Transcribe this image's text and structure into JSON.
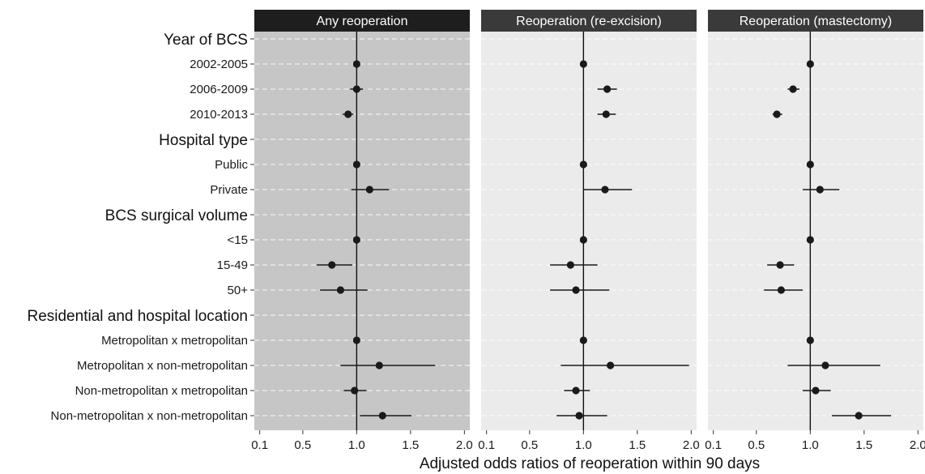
{
  "chart_data": {
    "type": "forest",
    "xlabel": "Adjusted odds ratios of reoperation within 90 days",
    "x_ticks": [
      0.1,
      0.5,
      1.0,
      1.5,
      2.0
    ],
    "x_tick_labels": [
      "0.1",
      "0.5",
      "1.0",
      "1.5",
      "2.0"
    ],
    "xlim": [
      0.05,
      2.05
    ],
    "reference_line": 1.0,
    "rows": [
      {
        "label": "Year of BCS",
        "header": true
      },
      {
        "label": "2002-2005"
      },
      {
        "label": "2006-2009"
      },
      {
        "label": "2010-2013"
      },
      {
        "label": "Hospital type",
        "header": true
      },
      {
        "label": "Public"
      },
      {
        "label": "Private"
      },
      {
        "label": "BCS surgical volume",
        "header": true
      },
      {
        "label": "<15"
      },
      {
        "label": "15-49"
      },
      {
        "label": "50+"
      },
      {
        "label": "Residential and hospital location",
        "header": true
      },
      {
        "label": "Metropolitan x metropolitan"
      },
      {
        "label": "Metropolitan x non-metropolitan"
      },
      {
        "label": "Non-metropolitan x metropolitan"
      },
      {
        "label": "Non-metropolitan x non-metropolitan"
      }
    ],
    "panels": [
      {
        "title": "Any reoperation",
        "background": "#c6c6c6",
        "strip_color": "#1e1e1e",
        "estimates": [
          null,
          {
            "or": 1.0,
            "lo": 1.0,
            "hi": 1.0
          },
          {
            "or": 1.0,
            "lo": 0.94,
            "hi": 1.06
          },
          {
            "or": 0.92,
            "lo": 0.87,
            "hi": 0.97
          },
          null,
          {
            "or": 1.0,
            "lo": 1.0,
            "hi": 1.0
          },
          {
            "or": 1.12,
            "lo": 0.95,
            "hi": 1.3
          },
          null,
          {
            "or": 1.0,
            "lo": 1.0,
            "hi": 1.0
          },
          {
            "or": 0.77,
            "lo": 0.63,
            "hi": 0.96
          },
          {
            "or": 0.85,
            "lo": 0.66,
            "hi": 1.1
          },
          null,
          {
            "or": 1.0,
            "lo": 1.0,
            "hi": 1.0
          },
          {
            "or": 1.21,
            "lo": 0.85,
            "hi": 1.73
          },
          {
            "or": 0.98,
            "lo": 0.88,
            "hi": 1.09
          },
          {
            "or": 1.24,
            "lo": 1.03,
            "hi": 1.51
          }
        ]
      },
      {
        "title": "Reoperation (re-excision)",
        "background": "#ebebeb",
        "strip_color": "#3a3a3a",
        "estimates": [
          null,
          {
            "or": 1.0,
            "lo": 1.0,
            "hi": 1.0
          },
          {
            "or": 1.22,
            "lo": 1.13,
            "hi": 1.31
          },
          {
            "or": 1.21,
            "lo": 1.13,
            "hi": 1.3
          },
          null,
          {
            "or": 1.0,
            "lo": 1.0,
            "hi": 1.0
          },
          {
            "or": 1.2,
            "lo": 1.0,
            "hi": 1.45
          },
          null,
          {
            "or": 1.0,
            "lo": 1.0,
            "hi": 1.0
          },
          {
            "or": 0.88,
            "lo": 0.69,
            "hi": 1.13
          },
          {
            "or": 0.93,
            "lo": 0.69,
            "hi": 1.24
          },
          null,
          {
            "or": 1.0,
            "lo": 1.0,
            "hi": 1.0
          },
          {
            "or": 1.25,
            "lo": 0.79,
            "hi": 1.98
          },
          {
            "or": 0.93,
            "lo": 0.82,
            "hi": 1.06
          },
          {
            "or": 0.96,
            "lo": 0.75,
            "hi": 1.22
          }
        ]
      },
      {
        "title": "Reoperation (mastectomy)",
        "background": "#ebebeb",
        "strip_color": "#3a3a3a",
        "estimates": [
          null,
          {
            "or": 1.0,
            "lo": 1.0,
            "hi": 1.0
          },
          {
            "or": 0.84,
            "lo": 0.79,
            "hi": 0.9
          },
          {
            "or": 0.69,
            "lo": 0.65,
            "hi": 0.74
          },
          null,
          {
            "or": 1.0,
            "lo": 1.0,
            "hi": 1.0
          },
          {
            "or": 1.09,
            "lo": 0.93,
            "hi": 1.27
          },
          null,
          {
            "or": 1.0,
            "lo": 1.0,
            "hi": 1.0
          },
          {
            "or": 0.72,
            "lo": 0.6,
            "hi": 0.85
          },
          {
            "or": 0.73,
            "lo": 0.57,
            "hi": 0.93
          },
          null,
          {
            "or": 1.0,
            "lo": 1.0,
            "hi": 1.0
          },
          {
            "or": 1.14,
            "lo": 0.79,
            "hi": 1.65
          },
          {
            "or": 1.05,
            "lo": 0.93,
            "hi": 1.19
          },
          {
            "or": 1.45,
            "lo": 1.2,
            "hi": 1.75
          }
        ]
      }
    ]
  }
}
